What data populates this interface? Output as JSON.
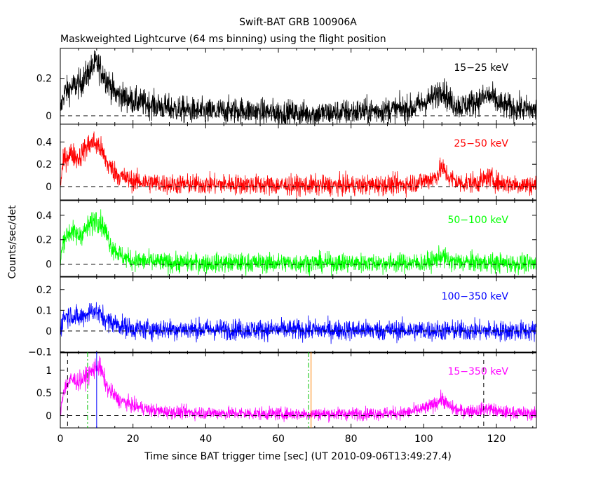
{
  "title": "Swift-BAT GRB 100906A",
  "subtitle": "Maskweighted Lightcurve (64 ms binning) using the flight position",
  "chart_data": {
    "type": "line",
    "title": "Swift-BAT GRB 100906A",
    "subtitle": "Maskweighted Lightcurve (64 ms binning) using the flight position",
    "xlabel": "Time since BAT trigger time [sec] (UT 2010-09-06T13:49:27.4)",
    "ylabel": "Counts/sec/det",
    "xlim": [
      0,
      131
    ],
    "x_ticks": [
      0,
      20,
      40,
      60,
      80,
      100,
      120
    ],
    "x_tick_labels": [
      "0",
      "20",
      "40",
      "60",
      "80",
      "100",
      "120"
    ],
    "panels": [
      {
        "name": "15−25 keV",
        "color": "#000000",
        "ylim": [
          -0.045,
          0.36
        ],
        "y_ticks": [
          0,
          0.2
        ],
        "y_tick_labels": [
          "0",
          "0.2"
        ],
        "noise": 0.035,
        "envelope": [
          [
            0,
            0.02
          ],
          [
            1,
            0.12
          ],
          [
            3,
            0.15
          ],
          [
            6,
            0.18
          ],
          [
            8,
            0.24
          ],
          [
            10,
            0.28
          ],
          [
            12,
            0.22
          ],
          [
            15,
            0.12
          ],
          [
            20,
            0.08
          ],
          [
            30,
            0.04
          ],
          [
            40,
            0.02
          ],
          [
            50,
            0.03
          ],
          [
            55,
            0.02
          ],
          [
            70,
            0.01
          ],
          [
            80,
            0.02
          ],
          [
            90,
            0.03
          ],
          [
            97,
            0.04
          ],
          [
            100,
            0.07
          ],
          [
            103,
            0.1
          ],
          [
            105,
            0.15
          ],
          [
            107,
            0.08
          ],
          [
            110,
            0.05
          ],
          [
            115,
            0.08
          ],
          [
            118,
            0.11
          ],
          [
            121,
            0.06
          ],
          [
            125,
            0.04
          ],
          [
            131,
            0.03
          ]
        ]
      },
      {
        "name": "25−50 keV",
        "color": "#ff0000",
        "ylim": [
          -0.12,
          0.56
        ],
        "y_ticks": [
          0,
          0.2,
          0.4
        ],
        "y_tick_labels": [
          "0",
          "0.2",
          "0.4"
        ],
        "noise": 0.045,
        "envelope": [
          [
            0,
            0.02
          ],
          [
            1,
            0.25
          ],
          [
            3,
            0.3
          ],
          [
            5,
            0.25
          ],
          [
            7,
            0.35
          ],
          [
            9,
            0.4
          ],
          [
            11,
            0.35
          ],
          [
            13,
            0.2
          ],
          [
            16,
            0.1
          ],
          [
            20,
            0.05
          ],
          [
            30,
            0.02
          ],
          [
            50,
            0.02
          ],
          [
            60,
            0.01
          ],
          [
            80,
            0.01
          ],
          [
            95,
            0.02
          ],
          [
            100,
            0.05
          ],
          [
            103,
            0.08
          ],
          [
            105,
            0.17
          ],
          [
            107,
            0.08
          ],
          [
            110,
            0.03
          ],
          [
            115,
            0.04
          ],
          [
            118,
            0.08
          ],
          [
            121,
            0.03
          ],
          [
            131,
            0.01
          ]
        ]
      },
      {
        "name": "50−100 keV",
        "color": "#00ff00",
        "ylim": [
          -0.1,
          0.52
        ],
        "y_ticks": [
          0,
          0.2,
          0.4
        ],
        "y_tick_labels": [
          "0",
          "0.2",
          "0.4"
        ],
        "noise": 0.04,
        "envelope": [
          [
            0,
            0.02
          ],
          [
            1,
            0.22
          ],
          [
            3,
            0.27
          ],
          [
            5,
            0.23
          ],
          [
            7,
            0.28
          ],
          [
            9,
            0.35
          ],
          [
            10,
            0.38
          ],
          [
            12,
            0.3
          ],
          [
            14,
            0.15
          ],
          [
            17,
            0.06
          ],
          [
            20,
            0.03
          ],
          [
            30,
            0.01
          ],
          [
            100,
            0.01
          ],
          [
            103,
            0.03
          ],
          [
            105,
            0.07
          ],
          [
            107,
            0.02
          ],
          [
            131,
            0.0
          ]
        ]
      },
      {
        "name": "100−350 keV",
        "color": "#0000ff",
        "ylim": [
          -0.105,
          0.26
        ],
        "y_ticks": [
          -0.1,
          0,
          0.1,
          0.2
        ],
        "y_tick_labels": [
          "−0.1",
          "0",
          "0.1",
          "0.2"
        ],
        "noise": 0.025,
        "envelope": [
          [
            0,
            0.01
          ],
          [
            1,
            0.07
          ],
          [
            3,
            0.08
          ],
          [
            5,
            0.06
          ],
          [
            7,
            0.08
          ],
          [
            9,
            0.1
          ],
          [
            11,
            0.08
          ],
          [
            13,
            0.05
          ],
          [
            16,
            0.03
          ],
          [
            20,
            0.01
          ],
          [
            131,
            0.0
          ]
        ]
      },
      {
        "name": "15−350 keV",
        "color": "#ff00ff",
        "ylim": [
          -0.27,
          1.4
        ],
        "y_ticks": [
          0,
          0.5,
          1
        ],
        "y_tick_labels": [
          "0",
          "0.5",
          "1"
        ],
        "noise": 0.07,
        "envelope": [
          [
            0,
            0.05
          ],
          [
            1,
            0.6
          ],
          [
            3,
            0.8
          ],
          [
            5,
            0.75
          ],
          [
            7,
            0.85
          ],
          [
            9,
            1.0
          ],
          [
            10,
            1.1
          ],
          [
            11,
            1.05
          ],
          [
            13,
            0.6
          ],
          [
            16,
            0.35
          ],
          [
            20,
            0.22
          ],
          [
            25,
            0.12
          ],
          [
            30,
            0.08
          ],
          [
            50,
            0.05
          ],
          [
            60,
            0.04
          ],
          [
            80,
            0.04
          ],
          [
            95,
            0.06
          ],
          [
            100,
            0.15
          ],
          [
            103,
            0.25
          ],
          [
            105,
            0.38
          ],
          [
            107,
            0.2
          ],
          [
            110,
            0.1
          ],
          [
            115,
            0.12
          ],
          [
            118,
            0.16
          ],
          [
            121,
            0.08
          ],
          [
            131,
            0.04
          ]
        ]
      }
    ],
    "markers_bottom_panel": [
      {
        "x": 2.0,
        "color": "#000000",
        "style": "dashed"
      },
      {
        "x": 7.5,
        "color": "#00c000",
        "style": "dashdot"
      },
      {
        "x": 10.0,
        "color": "#0000ff",
        "style": "solid"
      },
      {
        "x": 68.3,
        "color": "#00c000",
        "style": "dashdot"
      },
      {
        "x": 69.0,
        "color": "#ff8000",
        "style": "solid"
      },
      {
        "x": 116.5,
        "color": "#000000",
        "style": "dashed"
      }
    ],
    "grid": false,
    "legend": "none"
  }
}
